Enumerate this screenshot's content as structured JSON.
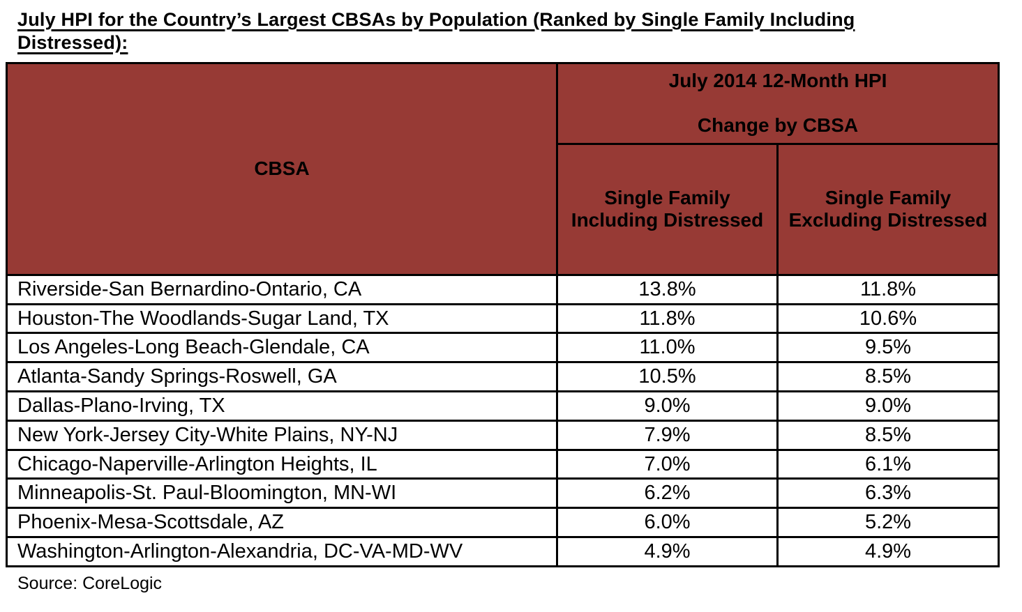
{
  "page": {
    "title": "July HPI for the Country’s Largest CBSAs by Population (Ranked by Single Family Including\nDistressed):",
    "source": "Source: CoreLogic"
  },
  "colors": {
    "header_background": "#973a35",
    "border": "#000000",
    "text": "#000000"
  },
  "table": {
    "cbsa_header": "CBSA",
    "group_header": "July 2014 12-Month HPI\n\nChange by CBSA",
    "col_including_header": "Single Family\nIncluding Distressed",
    "col_excluding_header": "Single Family\nExcluding Distressed",
    "rows": [
      {
        "cbsa": "Riverside-San Bernardino-Ontario, CA",
        "including": "13.8%",
        "excluding": "11.8%"
      },
      {
        "cbsa": "Houston-The Woodlands-Sugar Land, TX",
        "including": "11.8%",
        "excluding": "10.6%"
      },
      {
        "cbsa": "Los Angeles-Long Beach-Glendale, CA",
        "including": "11.0%",
        "excluding": "9.5%"
      },
      {
        "cbsa": "Atlanta-Sandy Springs-Roswell, GA",
        "including": "10.5%",
        "excluding": "8.5%"
      },
      {
        "cbsa": "Dallas-Plano-Irving, TX",
        "including": "9.0%",
        "excluding": "9.0%"
      },
      {
        "cbsa": "New York-Jersey City-White Plains, NY-NJ",
        "including": "7.9%",
        "excluding": "8.5%"
      },
      {
        "cbsa": "Chicago-Naperville-Arlington Heights, IL",
        "including": "7.0%",
        "excluding": "6.1%"
      },
      {
        "cbsa": "Minneapolis-St. Paul-Bloomington, MN-WI",
        "including": "6.2%",
        "excluding": "6.3%"
      },
      {
        "cbsa": "Phoenix-Mesa-Scottsdale, AZ",
        "including": "6.0%",
        "excluding": "5.2%"
      },
      {
        "cbsa": "Washington-Arlington-Alexandria, DC-VA-MD-WV",
        "including": "4.9%",
        "excluding": "4.9%"
      }
    ]
  }
}
